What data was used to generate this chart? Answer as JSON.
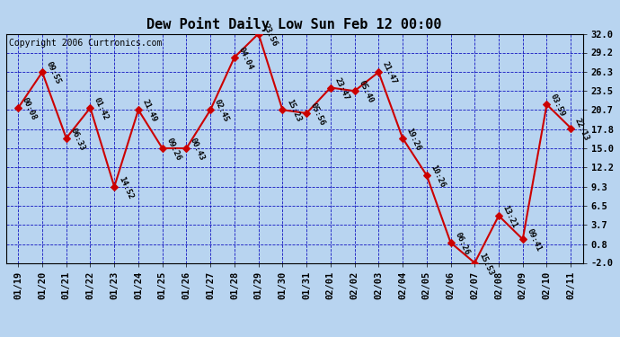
{
  "title": "Dew Point Daily Low Sun Feb 12 00:00",
  "copyright": "Copyright 2006 Curtronics.com",
  "background_color": "#b8d4f0",
  "plot_bg_color": "#b8d4f0",
  "line_color": "#cc0000",
  "marker_color": "#cc0000",
  "grid_color": "#0000bb",
  "dates": [
    "01/19",
    "01/20",
    "01/21",
    "01/22",
    "01/23",
    "01/24",
    "01/25",
    "01/26",
    "01/27",
    "01/28",
    "01/29",
    "01/30",
    "01/31",
    "02/01",
    "02/02",
    "02/03",
    "02/04",
    "02/05",
    "02/06",
    "02/07",
    "02/08",
    "02/09",
    "02/10",
    "02/11"
  ],
  "values": [
    21.0,
    26.3,
    16.5,
    21.0,
    9.3,
    20.7,
    15.0,
    15.0,
    20.7,
    28.5,
    32.0,
    20.7,
    20.2,
    24.0,
    23.5,
    26.3,
    16.5,
    11.0,
    1.0,
    -2.0,
    5.0,
    1.5,
    21.5,
    18.0
  ],
  "time_labels": [
    "00:08",
    "09:55",
    "06:33",
    "01:42",
    "14:52",
    "21:49",
    "09:26",
    "00:43",
    "02:45",
    "04:04",
    "23:56",
    "15:23",
    "05:56",
    "23:47",
    "05:40",
    "21:47",
    "19:26",
    "10:26",
    "06:26",
    "15:53",
    "13:21",
    "09:41",
    "03:59",
    "22:13"
  ],
  "ylim": [
    -2.0,
    32.0
  ],
  "yticks": [
    -2.0,
    0.8,
    3.7,
    6.5,
    9.3,
    12.2,
    15.0,
    17.8,
    20.7,
    23.5,
    26.3,
    29.2,
    32.0
  ],
  "title_fontsize": 11,
  "label_fontsize": 6.5,
  "tick_fontsize": 7.5,
  "copyright_fontsize": 7
}
